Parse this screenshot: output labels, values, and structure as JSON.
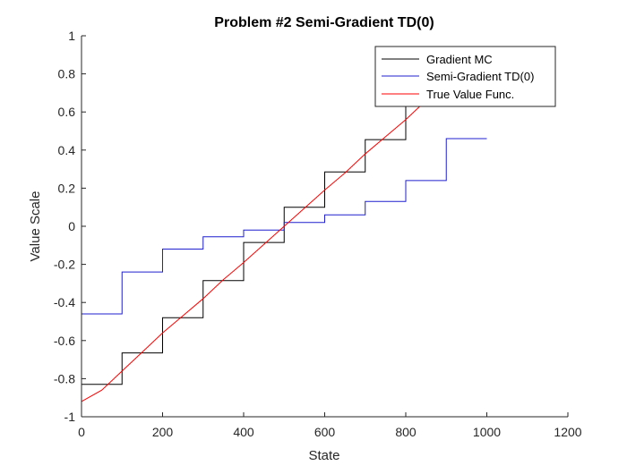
{
  "chart_data": {
    "type": "line",
    "title": "Problem #2 Semi-Gradient TD(0)",
    "xlabel": "State",
    "ylabel": "Value Scale",
    "xlim": [
      0,
      1200
    ],
    "ylim": [
      -1,
      1
    ],
    "xticks": [
      0,
      200,
      400,
      600,
      800,
      1000,
      1200
    ],
    "yticks": [
      -1,
      -0.8,
      -0.6,
      -0.4,
      -0.2,
      0,
      0.2,
      0.4,
      0.6,
      0.8,
      1
    ],
    "xtick_labels": [
      "0",
      "200",
      "400",
      "600",
      "800",
      "1000",
      "1200"
    ],
    "ytick_labels": [
      "-1",
      "-0.8",
      "-0.6",
      "-0.4",
      "-0.2",
      "0",
      "0.2",
      "0.4",
      "0.6",
      "0.8",
      "1"
    ],
    "grid": false,
    "legend_position": "top-right",
    "series": [
      {
        "name": "Gradient MC",
        "color": "#000000",
        "style": "step",
        "x": [
          0,
          100,
          100,
          200,
          200,
          300,
          300,
          400,
          400,
          500,
          500,
          600,
          600,
          700,
          700,
          800,
          800,
          900,
          900,
          1000
        ],
        "y": [
          -0.83,
          -0.83,
          -0.665,
          -0.665,
          -0.48,
          -0.48,
          -0.285,
          -0.285,
          -0.085,
          -0.085,
          0.1,
          0.1,
          0.285,
          0.285,
          0.455,
          0.455,
          0.66,
          0.66,
          0.83,
          0.83
        ]
      },
      {
        "name": "Semi-Gradient TD(0)",
        "color": "#1f1fcf",
        "style": "step",
        "x": [
          0,
          100,
          100,
          200,
          200,
          300,
          300,
          400,
          400,
          500,
          500,
          600,
          600,
          700,
          700,
          800,
          800,
          900,
          900,
          1000
        ],
        "y": [
          -0.46,
          -0.46,
          -0.24,
          -0.24,
          -0.12,
          -0.12,
          -0.055,
          -0.055,
          -0.02,
          -0.02,
          0.02,
          0.02,
          0.06,
          0.06,
          0.13,
          0.13,
          0.24,
          0.24,
          0.46,
          0.46
        ]
      },
      {
        "name": "True Value Func.",
        "color": "#ff0000",
        "style": "line",
        "x": [
          0,
          50,
          100,
          150,
          200,
          250,
          300,
          350,
          400,
          450,
          500,
          550,
          600,
          650,
          700,
          750,
          800,
          850,
          900,
          950,
          1000
        ],
        "y": [
          -0.92,
          -0.86,
          -0.76,
          -0.66,
          -0.56,
          -0.47,
          -0.38,
          -0.28,
          -0.19,
          -0.095,
          0.0,
          0.095,
          0.19,
          0.28,
          0.38,
          0.47,
          0.56,
          0.66,
          0.76,
          0.86,
          0.92
        ]
      }
    ]
  }
}
